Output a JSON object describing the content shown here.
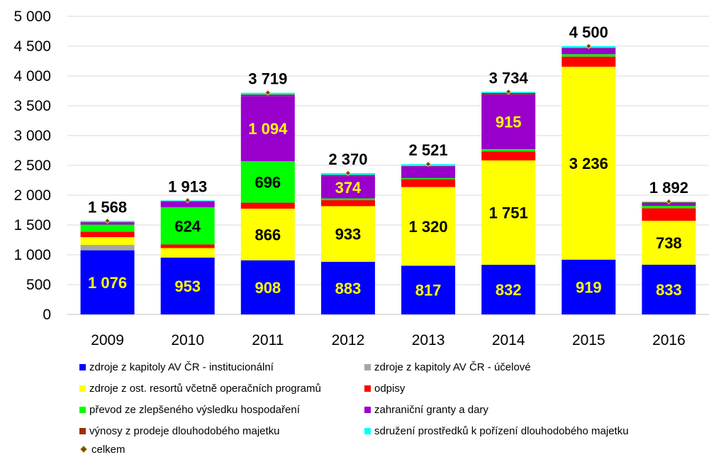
{
  "chart_data": {
    "type": "stacked-bar",
    "categories": [
      "2009",
      "2010",
      "2011",
      "2012",
      "2013",
      "2014",
      "2015",
      "2016"
    ],
    "ylim": [
      0,
      5000
    ],
    "yticks": [
      0,
      500,
      1000,
      1500,
      2000,
      2500,
      3000,
      3500,
      4000,
      4500,
      5000
    ],
    "ytick_labels": [
      "0",
      "500",
      "1 000",
      "1 500",
      "2 000",
      "2 500",
      "3 000",
      "3 500",
      "4 000",
      "4 500",
      "5 000"
    ],
    "grid": true,
    "legend_position": "bottom",
    "series": [
      {
        "name": "zdroje z kapitoly AV ČR - institucionální",
        "color": "#0000ff",
        "label_color": "#ffff00",
        "values": [
          1076,
          953,
          908,
          883,
          817,
          832,
          919,
          833
        ],
        "labels": [
          "1 076",
          "953",
          "908",
          "883",
          "817",
          "832",
          "919",
          "833"
        ]
      },
      {
        "name": "zdroje z kapitoly AV ČR - účelové",
        "color": "#a6a6a6",
        "values": [
          90,
          0,
          0,
          0,
          0,
          0,
          0,
          0
        ],
        "labels": [
          "",
          "",
          "",
          "",
          "",
          "",
          "",
          ""
        ]
      },
      {
        "name": "zdroje z ost. resortů včetně operačních programů",
        "color": "#ffff00",
        "label_color": "#000000",
        "values": [
          130,
          160,
          866,
          933,
          1320,
          1751,
          3236,
          738
        ],
        "labels": [
          "",
          "",
          "866",
          "933",
          "1 320",
          "1 751",
          "3 236",
          "738"
        ]
      },
      {
        "name": "odpisy",
        "color": "#ff0000",
        "values": [
          90,
          60,
          100,
          100,
          130,
          150,
          170,
          210
        ],
        "labels": [
          "",
          "",
          "",
          "",
          "",
          "",
          "",
          ""
        ]
      },
      {
        "name": "převod ze zlepšeného výsledku hospodaření",
        "color": "#00ff00",
        "label_color": "#000000",
        "values": [
          120,
          624,
          696,
          30,
          20,
          40,
          40,
          40
        ],
        "labels": [
          "",
          "624",
          "696",
          "",
          "",
          "",
          "",
          ""
        ]
      },
      {
        "name": "zahraniční granty a dary",
        "color": "#9900cc",
        "label_color": "#ffff00",
        "values": [
          40,
          100,
          1094,
          374,
          200,
          915,
          100,
          50
        ],
        "labels": [
          "",
          "",
          "1 094",
          "374",
          "",
          "915",
          "",
          ""
        ]
      },
      {
        "name": "výnosy z prodeje dlouhodobého majetku",
        "color": "#993300",
        "values": [
          5,
          5,
          25,
          20,
          4,
          26,
          5,
          11
        ],
        "labels": [
          "",
          "",
          "",
          "",
          "",
          "",
          "",
          ""
        ]
      },
      {
        "name": "sdružení prostředků k pořízení dlouhodobého majetku",
        "color": "#00ffff",
        "values": [
          17,
          11,
          30,
          30,
          30,
          20,
          30,
          10
        ],
        "labels": [
          "",
          "",
          "",
          "",
          "",
          "",
          "",
          ""
        ]
      }
    ],
    "totals": {
      "name": "celkem",
      "values": [
        1568,
        1913,
        3719,
        2370,
        2521,
        3734,
        4500,
        1892
      ],
      "labels": [
        "1 568",
        "1 913",
        "3 719",
        "2 370",
        "2 521",
        "3 734",
        "4 500",
        "1 892"
      ]
    }
  },
  "legend": {
    "items": [
      {
        "label": "zdroje z kapitoly AV ČR - institucionální",
        "color": "#0000ff"
      },
      {
        "label": "zdroje z kapitoly AV ČR - účelové",
        "color": "#a6a6a6"
      },
      {
        "label": "zdroje z ost. resortů včetně operačních programů",
        "color": "#ffff00"
      },
      {
        "label": "odpisy",
        "color": "#ff0000"
      },
      {
        "label": "převod ze zlepšeného výsledku hospodaření",
        "color": "#00ff00"
      },
      {
        "label": "zahraniční granty a dary",
        "color": "#9900cc"
      },
      {
        "label": "výnosy z prodeje dlouhodobého majetku",
        "color": "#993300"
      },
      {
        "label": "sdružení prostředků k pořízení dlouhodobého majetku",
        "color": "#00ffff"
      }
    ],
    "total_label": "celkem"
  }
}
